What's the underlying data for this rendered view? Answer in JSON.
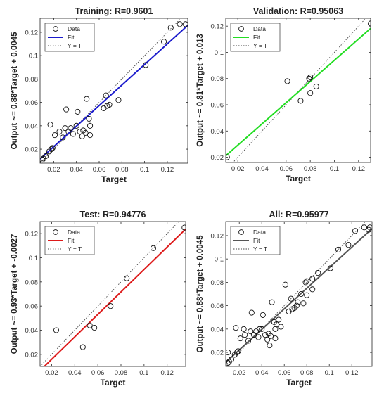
{
  "chart_data": [
    {
      "type": "scatter",
      "title": "Training: R=0.9601",
      "xlabel": "Target",
      "ylabel": "Output ~= 0.88*Target + 0.0045",
      "xlim": [
        0.008,
        0.138
      ],
      "ylim": [
        0.008,
        0.132
      ],
      "xticks": [
        0.02,
        0.04,
        0.06,
        0.08,
        0.1,
        0.12
      ],
      "xtick_labels": [
        "0.02",
        "0.04",
        "0.06",
        "0.08",
        "0.1",
        "0.12"
      ],
      "yticks": [
        0.02,
        0.04,
        0.06,
        0.08,
        0.1,
        0.12
      ],
      "ytick_labels": [
        "0.02",
        "0.04",
        "0.06",
        "0.08",
        "0.1",
        "0.12"
      ],
      "fit": {
        "slope": 0.88,
        "intercept": 0.0045,
        "color": "#1a1acc"
      },
      "legend": [
        {
          "key": "data",
          "label": "Data"
        },
        {
          "key": "fit",
          "label": "Fit"
        },
        {
          "key": "yt",
          "label": "Y = T"
        }
      ],
      "points": [
        [
          0.01,
          0.011
        ],
        [
          0.011,
          0.012
        ],
        [
          0.013,
          0.014
        ],
        [
          0.016,
          0.018
        ],
        [
          0.018,
          0.02
        ],
        [
          0.019,
          0.021
        ],
        [
          0.017,
          0.041
        ],
        [
          0.021,
          0.032
        ],
        [
          0.025,
          0.035
        ],
        [
          0.028,
          0.03
        ],
        [
          0.03,
          0.038
        ],
        [
          0.031,
          0.054
        ],
        [
          0.033,
          0.035
        ],
        [
          0.035,
          0.038
        ],
        [
          0.037,
          0.033
        ],
        [
          0.04,
          0.04
        ],
        [
          0.041,
          0.052
        ],
        [
          0.043,
          0.035
        ],
        [
          0.045,
          0.031
        ],
        [
          0.046,
          0.036
        ],
        [
          0.048,
          0.034
        ],
        [
          0.049,
          0.063
        ],
        [
          0.052,
          0.04
        ],
        [
          0.052,
          0.032
        ],
        [
          0.051,
          0.046
        ],
        [
          0.064,
          0.055
        ],
        [
          0.066,
          0.066
        ],
        [
          0.067,
          0.057
        ],
        [
          0.069,
          0.058
        ],
        [
          0.077,
          0.062
        ],
        [
          0.101,
          0.092
        ],
        [
          0.117,
          0.112
        ],
        [
          0.123,
          0.124
        ],
        [
          0.131,
          0.127
        ],
        [
          0.136,
          0.127
        ]
      ]
    },
    {
      "type": "scatter",
      "title": "Validation: R=0.95063",
      "xlabel": "Target",
      "ylabel": "Output ~= 0.81*Target + 0.013",
      "xlim": [
        0.01,
        0.13
      ],
      "ylim": [
        0.016,
        0.126
      ],
      "xticks": [
        0.02,
        0.04,
        0.06,
        0.08,
        0.1,
        0.12
      ],
      "xtick_labels": [
        "0.02",
        "0.04",
        "0.06",
        "0.08",
        "0.1",
        "0.12"
      ],
      "yticks": [
        0.02,
        0.04,
        0.06,
        0.08,
        0.1,
        0.12
      ],
      "ytick_labels": [
        "0.02",
        "0.04",
        "0.06",
        "0.08",
        "0.1",
        "0.12"
      ],
      "fit": {
        "slope": 0.81,
        "intercept": 0.013,
        "color": "#22dd22"
      },
      "legend": [
        {
          "key": "data",
          "label": "Data"
        },
        {
          "key": "fit",
          "label": "Fit"
        },
        {
          "key": "yt",
          "label": "Y = T"
        }
      ],
      "points": [
        [
          0.011,
          0.02
        ],
        [
          0.061,
          0.078
        ],
        [
          0.072,
          0.063
        ],
        [
          0.079,
          0.08
        ],
        [
          0.08,
          0.081
        ],
        [
          0.08,
          0.069
        ],
        [
          0.085,
          0.074
        ],
        [
          0.13,
          0.122
        ]
      ]
    },
    {
      "type": "scatter",
      "title": "Test: R=0.94776",
      "xlabel": "Target",
      "ylabel": "Output ~= 0.93*Target + -0.0027",
      "xlim": [
        0.01,
        0.136
      ],
      "ylim": [
        0.01,
        0.13
      ],
      "xticks": [
        0.02,
        0.04,
        0.06,
        0.08,
        0.1,
        0.12
      ],
      "xtick_labels": [
        "0.02",
        "0.04",
        "0.06",
        "0.08",
        "0.1",
        "0.12"
      ],
      "yticks": [
        0.02,
        0.04,
        0.06,
        0.08,
        0.1,
        0.12
      ],
      "ytick_labels": [
        "0.02",
        "0.04",
        "0.06",
        "0.08",
        "0.1",
        "0.12"
      ],
      "fit": {
        "slope": 0.93,
        "intercept": -0.0027,
        "color": "#dd1a1a"
      },
      "legend": [
        {
          "key": "data",
          "label": "Data"
        },
        {
          "key": "fit",
          "label": "Fit"
        },
        {
          "key": "yt",
          "label": "Y = T"
        }
      ],
      "points": [
        [
          0.024,
          0.04
        ],
        [
          0.047,
          0.026
        ],
        [
          0.053,
          0.044
        ],
        [
          0.057,
          0.042
        ],
        [
          0.071,
          0.06
        ],
        [
          0.085,
          0.083
        ],
        [
          0.108,
          0.108
        ],
        [
          0.135,
          0.125
        ]
      ]
    },
    {
      "type": "scatter",
      "title": "All: R=0.95977",
      "xlabel": "Target",
      "ylabel": "Output ~= 0.88*Target + 0.0045",
      "xlim": [
        0.008,
        0.138
      ],
      "ylim": [
        0.008,
        0.132
      ],
      "xticks": [
        0.02,
        0.04,
        0.06,
        0.08,
        0.1,
        0.12
      ],
      "xtick_labels": [
        "0.02",
        "0.04",
        "0.06",
        "0.08",
        "0.1",
        "0.12"
      ],
      "yticks": [
        0.02,
        0.04,
        0.06,
        0.08,
        0.1,
        0.12
      ],
      "ytick_labels": [
        "0.02",
        "0.04",
        "0.06",
        "0.08",
        "0.1",
        "0.12"
      ],
      "fit": {
        "slope": 0.88,
        "intercept": 0.0045,
        "color": "#555555"
      },
      "legend": [
        {
          "key": "data",
          "label": "Data"
        },
        {
          "key": "fit",
          "label": "Fit"
        },
        {
          "key": "yt",
          "label": "Y = T"
        }
      ],
      "points": [
        [
          0.01,
          0.011
        ],
        [
          0.01,
          0.02
        ],
        [
          0.011,
          0.012
        ],
        [
          0.013,
          0.014
        ],
        [
          0.016,
          0.018
        ],
        [
          0.018,
          0.02
        ],
        [
          0.019,
          0.021
        ],
        [
          0.017,
          0.041
        ],
        [
          0.021,
          0.032
        ],
        [
          0.025,
          0.035
        ],
        [
          0.028,
          0.03
        ],
        [
          0.03,
          0.038
        ],
        [
          0.031,
          0.054
        ],
        [
          0.033,
          0.035
        ],
        [
          0.035,
          0.038
        ],
        [
          0.037,
          0.033
        ],
        [
          0.04,
          0.04
        ],
        [
          0.041,
          0.052
        ],
        [
          0.043,
          0.035
        ],
        [
          0.045,
          0.031
        ],
        [
          0.046,
          0.036
        ],
        [
          0.048,
          0.034
        ],
        [
          0.049,
          0.063
        ],
        [
          0.052,
          0.04
        ],
        [
          0.052,
          0.032
        ],
        [
          0.051,
          0.046
        ],
        [
          0.064,
          0.055
        ],
        [
          0.066,
          0.066
        ],
        [
          0.067,
          0.057
        ],
        [
          0.069,
          0.058
        ],
        [
          0.077,
          0.062
        ],
        [
          0.101,
          0.092
        ],
        [
          0.117,
          0.112
        ],
        [
          0.123,
          0.124
        ],
        [
          0.131,
          0.127
        ],
        [
          0.136,
          0.127
        ],
        [
          0.061,
          0.078
        ],
        [
          0.072,
          0.063
        ],
        [
          0.079,
          0.08
        ],
        [
          0.08,
          0.081
        ],
        [
          0.08,
          0.069
        ],
        [
          0.085,
          0.074
        ],
        [
          0.024,
          0.04
        ],
        [
          0.047,
          0.026
        ],
        [
          0.053,
          0.044
        ],
        [
          0.057,
          0.042
        ],
        [
          0.071,
          0.06
        ],
        [
          0.085,
          0.083
        ],
        [
          0.108,
          0.108
        ],
        [
          0.135,
          0.125
        ],
        [
          0.038,
          0.04
        ],
        [
          0.055,
          0.048
        ],
        [
          0.075,
          0.07
        ],
        [
          0.09,
          0.088
        ]
      ]
    }
  ]
}
